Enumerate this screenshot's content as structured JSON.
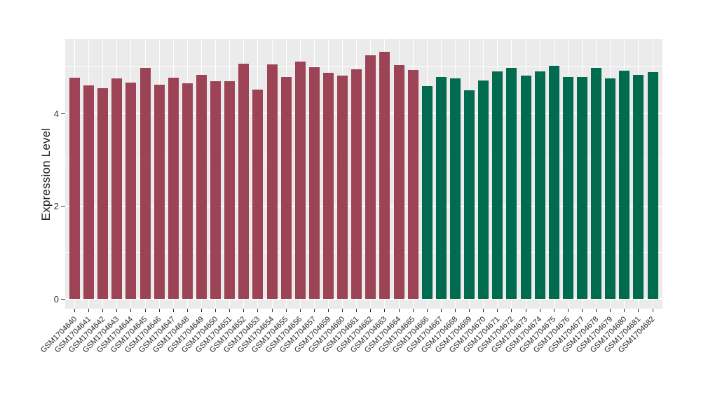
{
  "figure": {
    "background": "#FFFFFF",
    "panel_background": "#EBEBEB",
    "gridline_color": "#FFFFFF",
    "tick_color": "#333333",
    "axis_text_color": "#333333",
    "axis_title_color": "#1A1A1A"
  },
  "chart_data": {
    "type": "bar",
    "title": "",
    "xlabel": "",
    "ylabel": "Expression Level",
    "ylim": [
      0,
      5.6
    ],
    "yticks": [
      0,
      2,
      4
    ],
    "yminor_gridlines": [
      1,
      3,
      5
    ],
    "grid": "on",
    "legend_position": "none",
    "x_label_rotation_deg": 45,
    "categories": [
      "GSM1704640",
      "GSM1704641",
      "GSM1704642",
      "GSM1704643",
      "GSM1704644",
      "GSM1704645",
      "GSM1704646",
      "GSM1704647",
      "GSM1704648",
      "GSM1704649",
      "GSM1704650",
      "GSM1704651",
      "GSM1704652",
      "GSM1704653",
      "GSM1704654",
      "GSM1704655",
      "GSM1704656",
      "GSM1704657",
      "GSM1704659",
      "GSM1704660",
      "GSM1704661",
      "GSM1704662",
      "GSM1704663",
      "GSM1704664",
      "GSM1704665",
      "GSM1704666",
      "GSM1704667",
      "GSM1704668",
      "GSM1704669",
      "GSM1704670",
      "GSM1704671",
      "GSM1704672",
      "GSM1704673",
      "GSM1704674",
      "GSM1704675",
      "GSM1704676",
      "GSM1704677",
      "GSM1704678",
      "GSM1704679",
      "GSM1704680",
      "GSM1704681",
      "GSM1704682"
    ],
    "values": [
      4.77,
      4.61,
      4.54,
      4.76,
      4.67,
      4.98,
      4.62,
      4.77,
      4.65,
      4.83,
      4.7,
      4.7,
      5.07,
      4.51,
      5.05,
      4.79,
      5.12,
      4.99,
      4.88,
      4.81,
      4.95,
      5.25,
      5.33,
      5.04,
      4.94,
      4.59,
      4.79,
      4.76,
      4.5,
      4.71,
      4.9,
      4.98,
      4.81,
      4.91,
      5.02,
      4.78,
      4.78,
      4.98,
      4.75,
      4.92,
      4.83,
      4.89
    ],
    "color_groups": [
      {
        "color": "#9C4455",
        "count": 25
      },
      {
        "color": "#006B4E",
        "count": 17
      }
    ]
  }
}
